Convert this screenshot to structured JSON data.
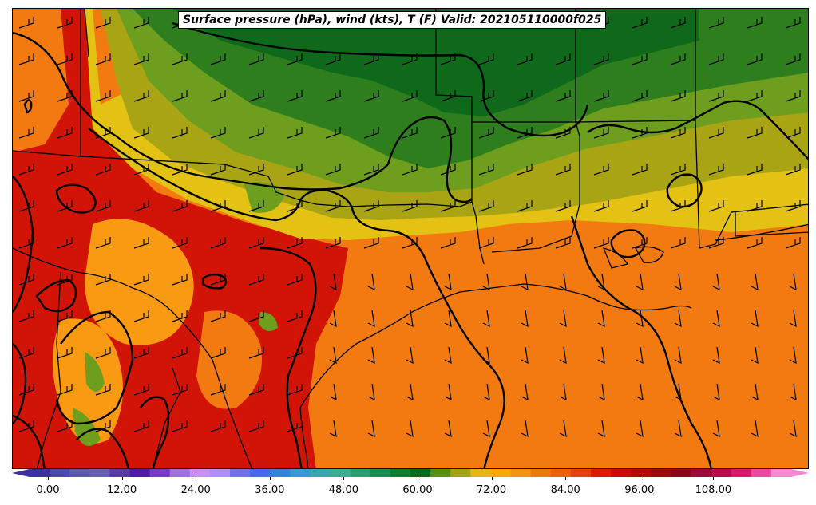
{
  "title": "Surface pressure (hPa), wind (kts), T (F) Valid: 202105110000f025",
  "colors": {
    "hot_red": "#d11405",
    "red": "#e02a0a",
    "orange": "#f27a10",
    "orange_light": "#fa9a12",
    "yellow": "#e4c214",
    "olive": "#a8a414",
    "green_light": "#6e9e1e",
    "green": "#2e7e1e",
    "green_dark": "#0e6a1a",
    "isobar": "#000000"
  },
  "colorbar": {
    "ticks": [
      "0.00",
      "12.00",
      "24.00",
      "36.00",
      "48.00",
      "60.00",
      "72.00",
      "84.00",
      "96.00",
      "108.00"
    ],
    "units": "F",
    "colors": [
      "#3a30a0",
      "#4a48b0",
      "#5a5aa8",
      "#6a60b0",
      "#5a3aa8",
      "#5018b0",
      "#7a38d0",
      "#a070e0",
      "#c890f0",
      "#b090f8",
      "#7070f0",
      "#4868f0",
      "#3a80e0",
      "#3898d0",
      "#38a8b0",
      "#38b090",
      "#28a070",
      "#1a9050",
      "#108030",
      "#0e6a1a",
      "#5a9010",
      "#a0a410",
      "#e0b810",
      "#f8a800",
      "#f89010",
      "#f07808",
      "#f06008",
      "#e84010",
      "#e01808",
      "#d00808",
      "#b80808",
      "#a00808",
      "#900818",
      "#a00838",
      "#c00850",
      "#e01870",
      "#f048a0",
      "#f888d0"
    ]
  }
}
